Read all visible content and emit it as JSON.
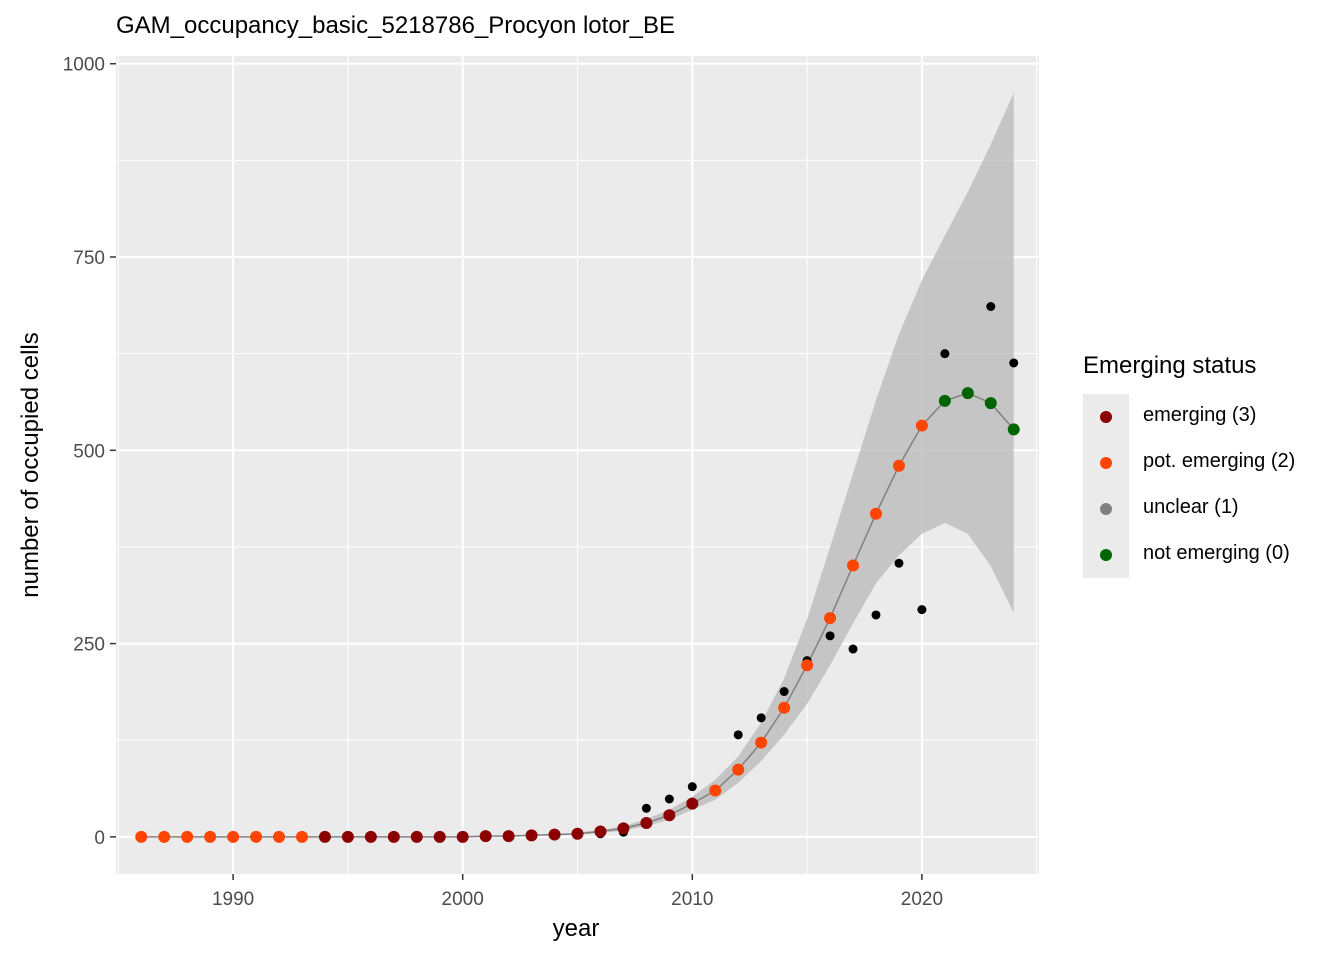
{
  "chart_data": {
    "type": "scatter",
    "title": "GAM_occupancy_basic_5218786_Procyon lotor_BE",
    "xlabel": "year",
    "ylabel": "number of occupied cells",
    "xlim": [
      1984.9,
      2025.1
    ],
    "ylim": [
      -48,
      1010
    ],
    "x_ticks": [
      1990,
      2000,
      2010,
      2020
    ],
    "y_ticks": [
      0,
      250,
      500,
      750,
      1000
    ],
    "grid": true,
    "legend_position": "right",
    "legend": {
      "title": "Emerging status",
      "items": [
        {
          "label": "emerging (3)",
          "color": "#8b0000"
        },
        {
          "label": "pot. emerging (2)",
          "color": "#ff4500"
        },
        {
          "label": "unclear (1)",
          "color": "#808080"
        },
        {
          "label": "not emerging (0)",
          "color": "#006400"
        }
      ]
    },
    "observed": {
      "color": "#000000",
      "x": [
        1994,
        1995,
        1996,
        1997,
        1998,
        1999,
        2000,
        2001,
        2002,
        2003,
        2004,
        2005,
        2006,
        2007,
        2008,
        2009,
        2010,
        2011,
        2012,
        2013,
        2014,
        2015,
        2016,
        2017,
        2018,
        2019,
        2020,
        2021,
        2022,
        2023,
        2024
      ],
      "y": [
        0,
        0,
        0,
        0,
        0,
        0,
        0,
        1,
        1,
        2,
        3,
        3,
        4,
        6,
        37,
        49,
        65,
        60,
        132,
        154,
        188,
        228,
        260,
        243,
        287,
        354,
        294,
        625,
        575,
        686,
        613
      ]
    },
    "fitted": {
      "line_color": "#808080",
      "x": [
        1986,
        1987,
        1988,
        1989,
        1990,
        1991,
        1992,
        1993,
        1994,
        1995,
        1996,
        1997,
        1998,
        1999,
        2000,
        2001,
        2002,
        2003,
        2004,
        2005,
        2006,
        2007,
        2008,
        2009,
        2010,
        2011,
        2012,
        2013,
        2014,
        2015,
        2016,
        2017,
        2018,
        2019,
        2020,
        2021,
        2022,
        2023,
        2024
      ],
      "y": [
        0,
        0,
        0,
        0,
        0,
        0,
        0,
        0,
        0,
        0,
        0,
        0,
        0,
        0,
        0,
        1,
        1,
        2,
        3,
        4,
        7,
        11,
        18,
        28,
        43,
        60,
        87,
        122,
        167,
        222,
        283,
        351,
        418,
        480,
        532,
        564,
        574,
        561,
        527
      ],
      "status": [
        2,
        2,
        2,
        2,
        2,
        2,
        2,
        2,
        3,
        3,
        3,
        3,
        3,
        3,
        3,
        3,
        3,
        3,
        3,
        3,
        3,
        3,
        3,
        3,
        3,
        2,
        2,
        2,
        2,
        2,
        2,
        2,
        2,
        2,
        2,
        0,
        0,
        0,
        0
      ]
    },
    "ci_band": {
      "color": "#bebebe",
      "x": [
        2005,
        2006,
        2007,
        2008,
        2009,
        2010,
        2011,
        2012,
        2013,
        2014,
        2015,
        2016,
        2017,
        2018,
        2019,
        2020,
        2021,
        2022,
        2023,
        2024
      ],
      "lower": [
        3,
        5,
        8,
        14,
        22,
        35,
        48,
        70,
        98,
        132,
        172,
        222,
        276,
        328,
        364,
        392,
        406,
        392,
        350,
        290
      ],
      "upper": [
        6,
        9,
        14,
        23,
        35,
        52,
        74,
        104,
        148,
        205,
        282,
        375,
        470,
        565,
        650,
        720,
        778,
        834,
        896,
        962
      ]
    }
  }
}
